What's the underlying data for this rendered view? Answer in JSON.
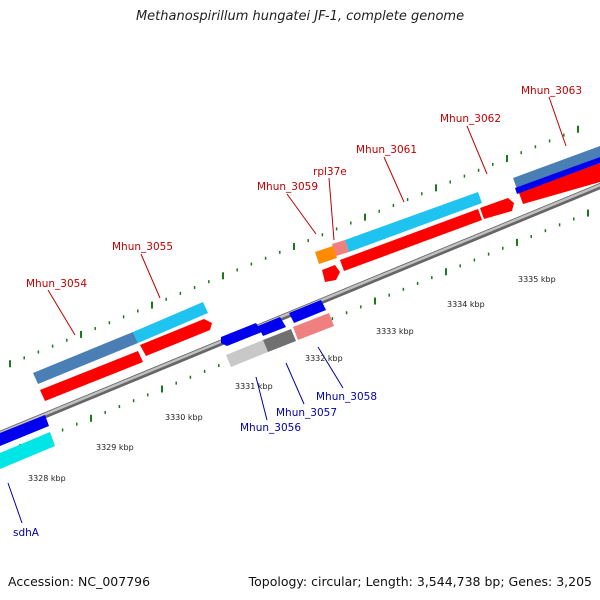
{
  "title": "Methanospirillum hungatei JF-1, complete genome",
  "footer": {
    "accession": "Accession: NC_007796",
    "summary": "Topology: circular; Length: 3,544,738 bp; Genes: 3,205"
  },
  "colors": {
    "forward_label": "#c00000",
    "reverse_label": "#0000aa",
    "backbone": "#8c8c8c",
    "tick": "#1a7a1a",
    "cds_red": "#ff0000",
    "cds_blue": "#0000ee",
    "gene_cyan": "#1fc3f0",
    "gene_steel": "#4a7fb5",
    "pink": "#f08080",
    "orange": "#ff8c00",
    "gray": "#808080",
    "light_gray": "#c8c8c8",
    "aqua": "#00e5e5"
  },
  "scale_labels": [
    "3328 kbp",
    "3329 kbp",
    "3330 kbp",
    "3331 kbp",
    "3332 kbp",
    "3333 kbp",
    "3334 kbp",
    "3335 kbp"
  ],
  "genes_forward": [
    {
      "label": "Mhun_3054"
    },
    {
      "label": "Mhun_3055"
    },
    {
      "label": "Mhun_3059"
    },
    {
      "label": "rpl37e"
    },
    {
      "label": "Mhun_3061"
    },
    {
      "label": "Mhun_3062"
    },
    {
      "label": "Mhun_3063"
    }
  ],
  "genes_reverse": [
    {
      "label": "sdhA"
    },
    {
      "label": "Mhun_3056"
    },
    {
      "label": "Mhun_3057"
    },
    {
      "label": "Mhun_3058"
    }
  ]
}
